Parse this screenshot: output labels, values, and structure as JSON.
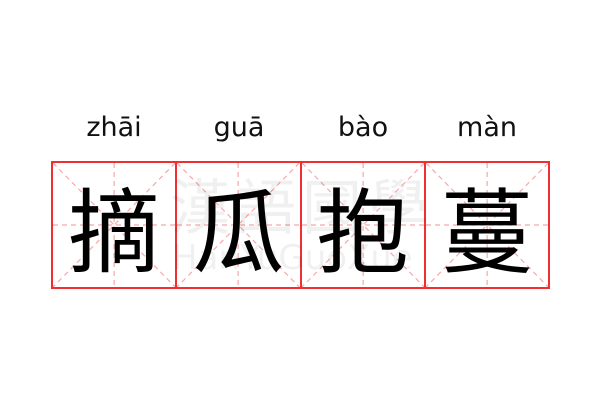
{
  "idiom": [
    {
      "pinyin": "zhāi",
      "char": "摘"
    },
    {
      "pinyin": "guā",
      "char": "瓜"
    },
    {
      "pinyin": "bào",
      "char": "抱"
    },
    {
      "pinyin": "màn",
      "char": "蔓"
    }
  ],
  "watermark": {
    "chinese": "漢語國學",
    "latin": "HanYuGuoXue"
  },
  "colors": {
    "grid_border": "#f03030",
    "guide_lines": "#f7a8a8"
  }
}
